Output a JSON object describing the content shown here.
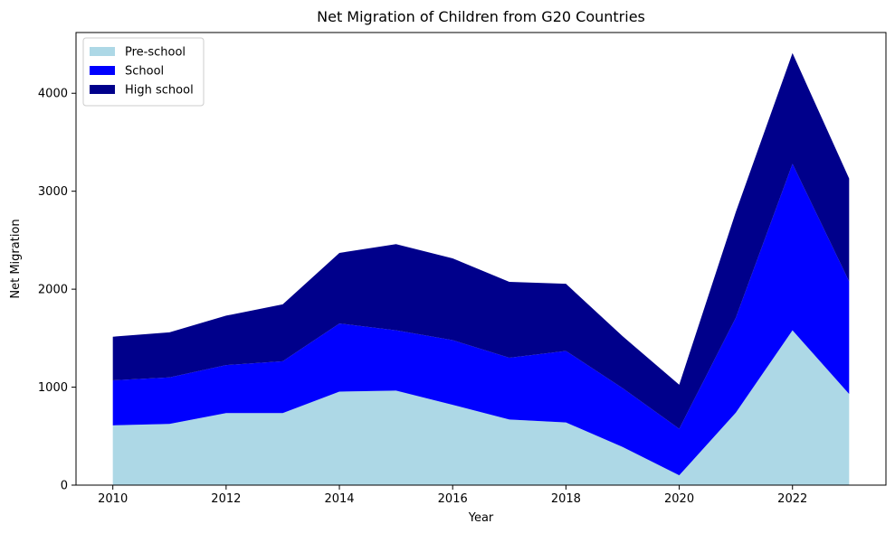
{
  "chart_data": {
    "type": "area",
    "stacked": true,
    "title": "Net Migration of Children from G20 Countries",
    "xlabel": "Year",
    "ylabel": "Net Migration",
    "x": [
      2010,
      2011,
      2012,
      2013,
      2014,
      2015,
      2016,
      2017,
      2018,
      2019,
      2020,
      2021,
      2022,
      2023
    ],
    "xlim": [
      2009.35,
      2023.65
    ],
    "ylim": [
      0,
      4620
    ],
    "xticks": [
      2010,
      2012,
      2014,
      2016,
      2018,
      2020,
      2022
    ],
    "yticks": [
      0,
      1000,
      2000,
      3000,
      4000
    ],
    "grid": false,
    "legend": "upper-left",
    "series": [
      {
        "name": "Pre-school",
        "color": "#add8e6",
        "values": [
          610,
          625,
          735,
          735,
          955,
          965,
          820,
          670,
          640,
          390,
          100,
          740,
          1580,
          930
        ]
      },
      {
        "name": "School",
        "color": "#0000ff",
        "values": [
          460,
          475,
          490,
          530,
          695,
          615,
          660,
          630,
          730,
          600,
          475,
          970,
          1700,
          1150
        ]
      },
      {
        "name": "High school",
        "color": "#00008b",
        "values": [
          445,
          460,
          505,
          580,
          720,
          880,
          835,
          775,
          685,
          530,
          450,
          1080,
          1130,
          1050
        ]
      }
    ]
  }
}
